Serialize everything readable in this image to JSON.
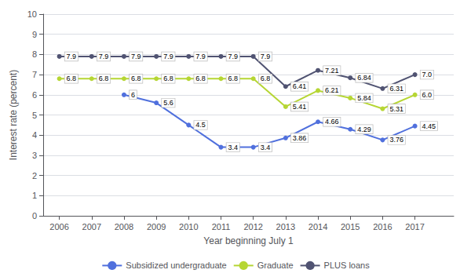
{
  "chart_data": {
    "type": "line",
    "x": [
      2006,
      2007,
      2008,
      2009,
      2010,
      2011,
      2012,
      2013,
      2014,
      2015,
      2016,
      2017
    ],
    "xlim": [
      2005.5,
      2018.2
    ],
    "xticks": [
      2006,
      2007,
      2008,
      2009,
      2010,
      2011,
      2012,
      2013,
      2014,
      2015,
      2016,
      2017
    ],
    "ylim": [
      0,
      10
    ],
    "yticks": [
      0,
      1,
      2,
      3,
      4,
      5,
      6,
      7,
      8,
      9,
      10
    ],
    "xlabel": "Year beginning July 1",
    "ylabel": "Interest rate (percent)",
    "grid": true,
    "legend": "bottom",
    "data_labels": true,
    "marker": "circle",
    "series": [
      {
        "name": "Subsidized undergraduate",
        "values": [
          null,
          null,
          6.0,
          5.6,
          4.5,
          3.4,
          3.4,
          3.86,
          4.66,
          4.29,
          3.76,
          4.45
        ],
        "value_labels": [
          null,
          null,
          "6",
          "5.6",
          "4.5",
          "3.4",
          "3.4",
          "3.86",
          "4.66",
          "4.29",
          "3.76",
          "4.45"
        ]
      },
      {
        "name": "Graduate",
        "values": [
          6.8,
          6.8,
          6.8,
          6.8,
          6.8,
          6.8,
          6.8,
          5.41,
          6.21,
          5.84,
          5.31,
          6.0
        ],
        "value_labels": [
          "6.8",
          "6.8",
          "6.8",
          "6.8",
          "6.8",
          "6.8",
          "6.8",
          "5.41",
          "6.21",
          "5.84",
          "5.31",
          "6.0"
        ]
      },
      {
        "name": "PLUS loans",
        "values": [
          7.9,
          7.9,
          7.9,
          7.9,
          7.9,
          7.9,
          7.9,
          6.41,
          7.21,
          6.84,
          6.31,
          7.0
        ],
        "value_labels": [
          "7.9",
          "7.9",
          "7.9",
          "7.9",
          "7.9",
          "7.9",
          "7.9",
          "6.41",
          "7.21",
          "6.84",
          "6.31",
          "7.0"
        ]
      }
    ]
  }
}
